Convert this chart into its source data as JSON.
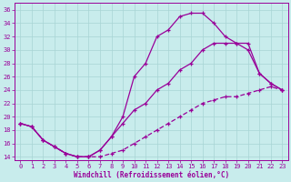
{
  "xlabel": "Windchill (Refroidissement éolien,°C)",
  "background_color": "#c8ecec",
  "grid_color": "#a8d4d4",
  "line_color": "#990099",
  "xlim": [
    -0.5,
    23.5
  ],
  "ylim": [
    13.5,
    37
  ],
  "yticks": [
    14,
    16,
    18,
    20,
    22,
    24,
    26,
    28,
    30,
    32,
    34,
    36
  ],
  "xticks": [
    0,
    1,
    2,
    3,
    4,
    5,
    6,
    7,
    8,
    9,
    10,
    11,
    12,
    13,
    14,
    15,
    16,
    17,
    18,
    19,
    20,
    21,
    22,
    23
  ],
  "curve1_x": [
    0,
    1,
    2,
    3,
    4,
    5,
    6,
    7,
    8,
    9,
    10,
    11,
    12,
    13,
    14,
    15,
    16,
    17,
    18,
    19,
    20,
    21,
    22,
    23
  ],
  "curve1_y": [
    19,
    18.5,
    16.5,
    15.5,
    14.5,
    14,
    14,
    15,
    17,
    20,
    26,
    28,
    32,
    33,
    35,
    35.5,
    35.5,
    34,
    32,
    31,
    30,
    26.5,
    25,
    24
  ],
  "curve2_x": [
    0,
    1,
    2,
    3,
    4,
    5,
    6,
    7,
    8,
    9,
    10,
    11,
    12,
    13,
    14,
    15,
    16,
    17,
    18,
    19,
    20,
    21,
    22,
    23
  ],
  "curve2_y": [
    19,
    18.5,
    16.5,
    15.5,
    14.5,
    14,
    14,
    15,
    17,
    19,
    21,
    22,
    24,
    25,
    27,
    28,
    30,
    31,
    31,
    31,
    31,
    26.5,
    25,
    24
  ],
  "curve3_x": [
    0,
    1,
    2,
    3,
    4,
    5,
    6,
    7,
    8,
    9,
    10,
    11,
    12,
    13,
    14,
    15,
    16,
    17,
    18,
    19,
    20,
    21,
    22,
    23
  ],
  "curve3_y": [
    19,
    18.5,
    16.5,
    15.5,
    14.5,
    14,
    14,
    14,
    14.5,
    15,
    16,
    17,
    18,
    19,
    20,
    21,
    22,
    22.5,
    23,
    23,
    23.5,
    24,
    24.5,
    24
  ]
}
